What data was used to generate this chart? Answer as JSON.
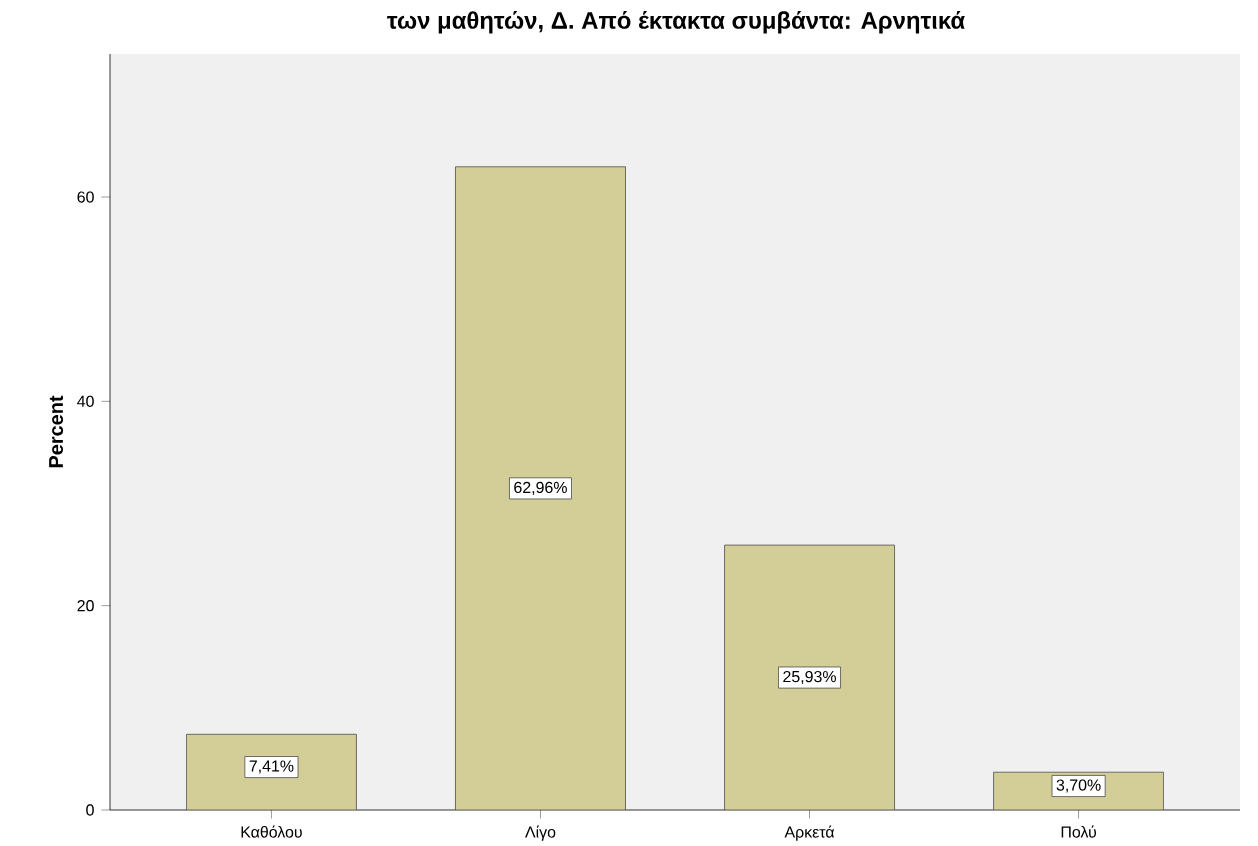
{
  "chart_data": {
    "type": "bar",
    "title": "των μαθητών, Δ. Από έκτακτα συμβάντα: Αρνητικά",
    "ylabel": "Percent",
    "categories": [
      "Καθόλου",
      "Λίγο",
      "Αρκετά",
      "Πολύ"
    ],
    "values": [
      7.41,
      62.96,
      25.93,
      3.7
    ],
    "value_labels": [
      "7,41%",
      "62,96%",
      "25,93%",
      "3,70%"
    ],
    "color": "#d3ce97",
    "ylim": [
      0,
      74
    ],
    "yticks": [
      0,
      20,
      40,
      60
    ],
    "grid": false
  }
}
